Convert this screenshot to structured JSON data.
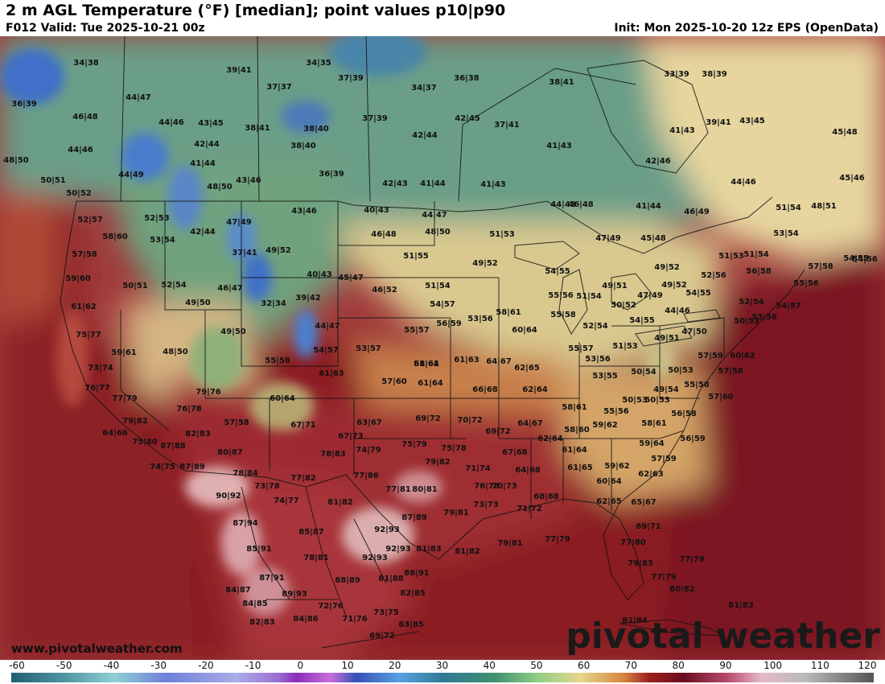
{
  "header": {
    "title": "2 m AGL Temperature (°F) [median]; point values p10|p90",
    "valid": "F012 Valid: Tue 2025-10-21 00z",
    "init": "Init: Mon 2025-10-20 12z EPS (OpenData)"
  },
  "footer": {
    "website": "www.pivotalweather.com",
    "brand": "pivotal weather"
  },
  "scale": {
    "min": -60,
    "max": 120,
    "tick_labels": [
      "-60",
      "-50",
      "-40",
      "-30",
      "-20",
      "-10",
      "0",
      "10",
      "20",
      "30",
      "40",
      "50",
      "60",
      "70",
      "80",
      "90",
      "100",
      "110",
      "120"
    ]
  },
  "colors": {
    "snow_blue": "#3f6fc8",
    "cool_teal": "#5f9a93",
    "cool_green": "#7fb07f",
    "mild_yellow": "#e9dca0",
    "warm_tan": "#d7a46e",
    "warm_orange": "#c0623a",
    "hot_red": "#9e1d2a",
    "hot_maroon": "#7f1526",
    "very_hot_pink": "#d8a7a7"
  },
  "point_values": [
    "34|38",
    "39|41",
    "34|35",
    "37|39",
    "36|38",
    "38|41",
    "34|37",
    "37|37",
    "33|39",
    "38|39",
    "36|39",
    "44|47",
    "46|48",
    "44|46",
    "43|45",
    "38|41",
    "38|40",
    "42|44",
    "37|39",
    "42|45",
    "37|41",
    "39|41",
    "43|45",
    "41|43",
    "44|46",
    "42|44",
    "38|40",
    "41|44",
    "44|49",
    "36|39",
    "42|43",
    "41|44",
    "41|43",
    "41|43",
    "45|48",
    "48|50",
    "50|51",
    "48|50",
    "43|46",
    "42|46",
    "44|46",
    "45|46",
    "50|52",
    "43|46",
    "40|43",
    "44|47",
    "44|48",
    "46|48",
    "41|44",
    "46|49",
    "51|54",
    "48|51",
    "52|57",
    "52|53",
    "47|49",
    "42|44",
    "46|48",
    "48|50",
    "51|53",
    "47|49",
    "45|48",
    "53|54",
    "58|60",
    "53|54",
    "37|41",
    "49|52",
    "51|55",
    "49|52",
    "51|53",
    "51|54",
    "57|58",
    "54|55",
    "57|58",
    "40|43",
    "45|47",
    "54|55",
    "49|52",
    "52|56",
    "56|58",
    "54|56",
    "59|60",
    "50|51",
    "52|54",
    "46|47",
    "32|34",
    "39|42",
    "46|52",
    "51|54",
    "55|56",
    "51|54",
    "49|51",
    "47|49",
    "49|52",
    "54|55",
    "55|56",
    "61|62",
    "49|50",
    "54|57",
    "58|61",
    "55|58",
    "50|52",
    "44|46",
    "52|54",
    "54|57",
    "49|50",
    "44|47",
    "55|57",
    "56|59",
    "53|56",
    "60|64",
    "52|54",
    "54|55",
    "50|53",
    "53|56",
    "75|77",
    "59|61",
    "48|50",
    "55|58",
    "54|57",
    "53|57",
    "61|64",
    "55|57",
    "51|53",
    "49|51",
    "47|50",
    "57|59",
    "60|62",
    "73|74",
    "61|63",
    "58|61",
    "61|63",
    "64|67",
    "62|65",
    "53|56",
    "53|55",
    "50|54",
    "50|53",
    "57|58",
    "76|77",
    "57|60",
    "61|64",
    "66|68",
    "62|64",
    "50|53",
    "49|54",
    "55|58",
    "77|79",
    "79|76",
    "60|64",
    "58|61",
    "55|56",
    "50|53",
    "57|60",
    "79|82",
    "76|78",
    "57|58",
    "67|71",
    "63|67",
    "69|72",
    "70|72",
    "64|67",
    "58|61",
    "56|58",
    "64|66",
    "82|83",
    "67|73",
    "69|72",
    "62|64",
    "58|60",
    "59|62",
    "59|64",
    "56|59",
    "75|80",
    "87|88",
    "80|87",
    "78|83",
    "74|79",
    "75|79",
    "75|78",
    "67|68",
    "61|64",
    "74|75",
    "87|89",
    "78|84",
    "77|82",
    "77|86",
    "79|82",
    "71|74",
    "64|68",
    "61|65",
    "59|62",
    "57|59",
    "73|78",
    "77|81",
    "80|81",
    "76|78",
    "70|73",
    "60|64",
    "62|63",
    "90|92",
    "74|77",
    "81|82",
    "68|68",
    "62|65",
    "65|67",
    "87|94",
    "85|87",
    "87|89",
    "79|81",
    "73|73",
    "71|72",
    "69|71",
    "85|91",
    "92|93",
    "81|83",
    "81|82",
    "79|81",
    "77|79",
    "77|80",
    "78|81",
    "92|93",
    "92|93",
    "77|79",
    "87|91",
    "88|89",
    "81|88",
    "88|91",
    "79|83",
    "77|79",
    "84|87",
    "89|93",
    "82|85",
    "80|82",
    "84|85",
    "72|76",
    "73|75",
    "81|83",
    "82|83",
    "84|86",
    "71|76",
    "83|85",
    "81|84",
    "69|72"
  ]
}
